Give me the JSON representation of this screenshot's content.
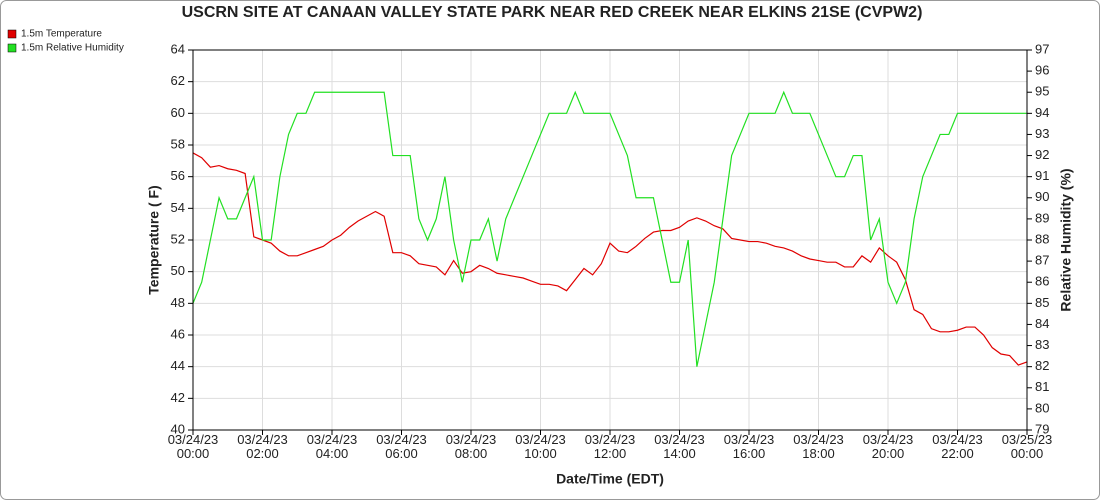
{
  "chart_data": {
    "type": "line",
    "title": "USCRN SITE AT CANAAN VALLEY STATE PARK NEAR RED CREEK NEAR ELKINS 21SE (CVPW2)",
    "x_label": "Date/Time (EDT)",
    "y_label": "Temperature ( F)",
    "y2_label": "Relative Humidity (%)",
    "legend": "top-left",
    "grid": true,
    "x": [
      0,
      0.25,
      0.5,
      0.75,
      1,
      1.25,
      1.5,
      1.75,
      2,
      2.25,
      2.5,
      2.75,
      3,
      3.25,
      3.5,
      3.75,
      4,
      4.25,
      4.5,
      4.75,
      5,
      5.25,
      5.5,
      5.75,
      6,
      6.25,
      6.5,
      6.75,
      7,
      7.25,
      7.5,
      7.75,
      8,
      8.25,
      8.5,
      8.75,
      9,
      9.25,
      9.5,
      9.75,
      10,
      10.25,
      10.5,
      10.75,
      11,
      11.25,
      11.5,
      11.75,
      12,
      12.25,
      12.5,
      12.75,
      13,
      13.25,
      13.5,
      13.75,
      14,
      14.25,
      14.5,
      14.75,
      15,
      15.25,
      15.5,
      15.75,
      16,
      16.25,
      16.5,
      16.75,
      17,
      17.25,
      17.5,
      17.75,
      18,
      18.25,
      18.5,
      18.75,
      19,
      19.25,
      19.5,
      19.75,
      20,
      20.25,
      20.5,
      20.75,
      21,
      21.25,
      21.5,
      21.75,
      22,
      22.25,
      22.5,
      22.75,
      23,
      23.25,
      23.5,
      23.75,
      24
    ],
    "xlim": [
      0,
      24
    ],
    "xticks": [
      {
        "value": 0,
        "label": "03/24/23\n00:00"
      },
      {
        "value": 2,
        "label": "03/24/23\n02:00"
      },
      {
        "value": 4,
        "label": "03/24/23\n04:00"
      },
      {
        "value": 6,
        "label": "03/24/23\n06:00"
      },
      {
        "value": 8,
        "label": "03/24/23\n08:00"
      },
      {
        "value": 10,
        "label": "03/24/23\n10:00"
      },
      {
        "value": 12,
        "label": "03/24/23\n12:00"
      },
      {
        "value": 14,
        "label": "03/24/23\n14:00"
      },
      {
        "value": 16,
        "label": "03/24/23\n16:00"
      },
      {
        "value": 18,
        "label": "03/24/23\n18:00"
      },
      {
        "value": 20,
        "label": "03/24/23\n20:00"
      },
      {
        "value": 22,
        "label": "03/24/23\n22:00"
      },
      {
        "value": 24,
        "label": "03/25/23\n00:00"
      }
    ],
    "ylim": [
      40,
      64
    ],
    "yticks": [
      40,
      42,
      44,
      46,
      48,
      50,
      52,
      54,
      56,
      58,
      60,
      62,
      64
    ],
    "y2lim": [
      79,
      97
    ],
    "y2ticks": [
      79,
      80,
      81,
      82,
      83,
      84,
      85,
      86,
      87,
      88,
      89,
      90,
      91,
      92,
      93,
      94,
      95,
      96,
      97
    ],
    "series": [
      {
        "name": "1.5m Temperature",
        "color": "#e00000",
        "values": [
          57.5,
          57.2,
          56.6,
          56.7,
          56.5,
          56.4,
          56.2,
          52.2,
          52.0,
          51.8,
          51.3,
          51.0,
          51.0,
          51.2,
          51.4,
          51.6,
          52.0,
          52.3,
          52.8,
          53.2,
          53.5,
          53.8,
          53.5,
          51.2,
          51.2,
          51.0,
          50.5,
          50.4,
          50.3,
          49.8,
          50.7,
          49.9,
          50.0,
          50.4,
          50.2,
          49.9,
          49.8,
          49.7,
          49.6,
          49.4,
          49.2,
          49.2,
          49.1,
          48.8,
          49.5,
          50.2,
          49.8,
          50.5,
          51.8,
          51.3,
          51.2,
          51.6,
          52.1,
          52.5,
          52.6,
          52.6,
          52.8,
          53.2,
          53.4,
          53.2,
          52.9,
          52.7,
          52.1,
          52.0,
          51.9,
          51.9,
          51.8,
          51.6,
          51.5,
          51.3,
          51.0,
          50.8,
          50.7,
          50.6,
          50.6,
          50.3,
          50.3,
          51.0,
          50.6,
          51.5,
          51.0,
          50.6,
          49.5,
          47.6,
          47.3,
          46.4,
          46.2,
          46.2,
          46.3,
          46.5,
          46.5,
          46.0,
          45.2,
          44.8,
          44.7,
          44.1,
          44.3
        ]
      },
      {
        "name": "1.5m Relative Humidity",
        "color": "#22e022",
        "axis": "y2",
        "values": [
          85,
          86,
          88,
          90,
          89,
          89,
          90,
          91,
          88,
          88,
          91,
          93,
          94,
          94,
          95,
          95,
          95,
          95,
          95,
          95,
          95,
          95,
          95,
          92,
          92,
          92,
          89,
          88,
          89,
          91,
          88,
          86,
          88,
          88,
          89,
          87,
          89,
          90,
          91,
          92,
          93,
          94,
          94,
          94,
          95,
          94,
          94,
          94,
          94,
          93,
          92,
          90,
          90,
          90,
          88,
          86,
          86,
          88,
          82,
          84,
          86,
          89,
          92,
          93,
          94,
          94,
          94,
          94,
          95,
          94,
          94,
          94,
          93,
          92,
          91,
          91,
          92,
          92,
          88,
          89,
          86,
          85,
          86,
          89,
          91,
          92,
          93,
          93,
          94,
          94,
          94,
          94,
          94,
          94,
          94,
          94,
          94
        ]
      }
    ]
  }
}
